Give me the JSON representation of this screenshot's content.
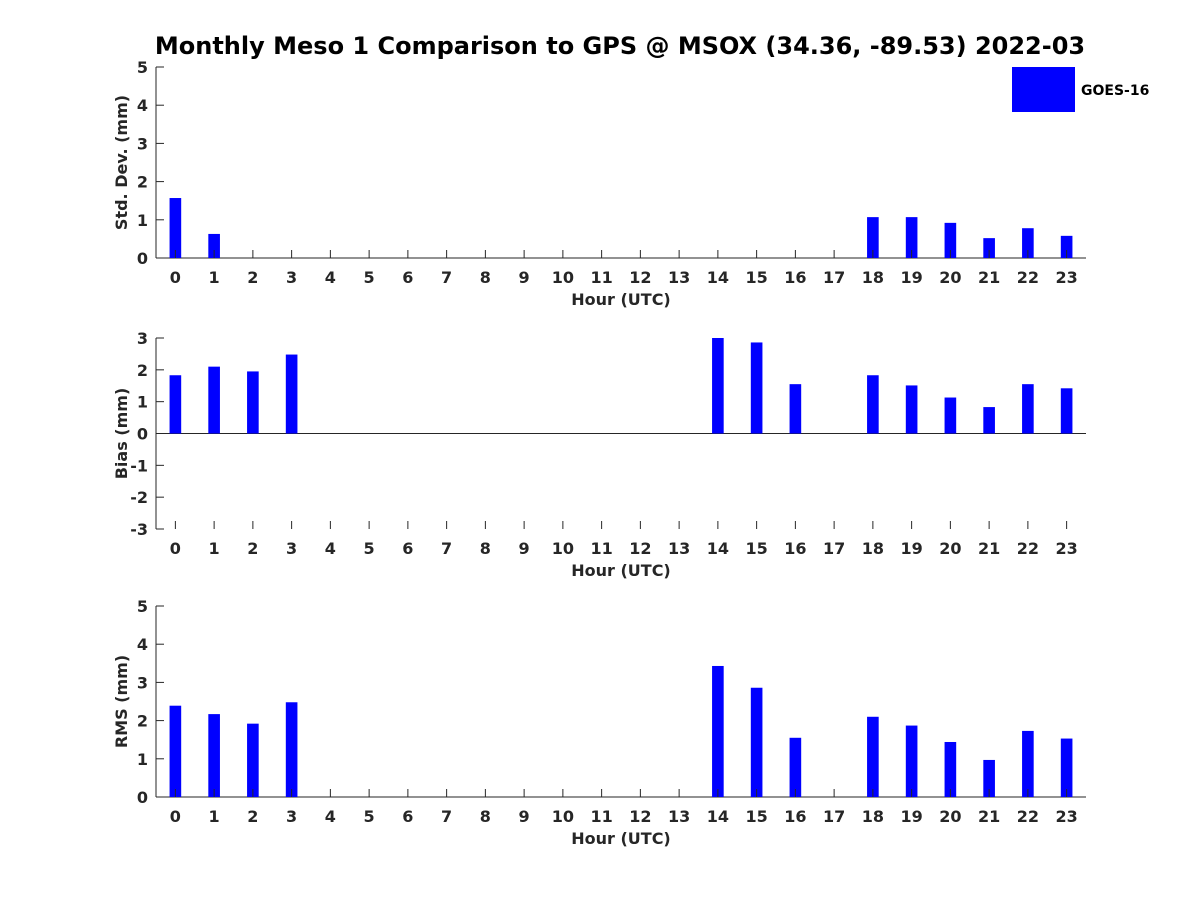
{
  "title": "Monthly Meso 1 Comparison to GPS @ MSOX (34.36, -89.53) 2022-03",
  "legend": {
    "label": "GOES-16",
    "color": "#0000ff",
    "placement": "top-right"
  },
  "chart_data": [
    {
      "type": "bar",
      "xlabel": "Hour (UTC)",
      "ylabel": "Std. Dev. (mm)",
      "ylim": [
        0,
        5
      ],
      "yticks": [
        0,
        1,
        2,
        3,
        4,
        5
      ],
      "categories": [
        "0",
        "1",
        "2",
        "3",
        "4",
        "5",
        "6",
        "7",
        "8",
        "9",
        "10",
        "11",
        "12",
        "13",
        "14",
        "15",
        "16",
        "17",
        "18",
        "19",
        "20",
        "21",
        "22",
        "23"
      ],
      "series": [
        {
          "name": "GOES-16",
          "color": "#0000ff",
          "values": [
            1.57,
            0.63,
            null,
            null,
            null,
            null,
            null,
            null,
            null,
            null,
            null,
            null,
            null,
            null,
            null,
            null,
            null,
            null,
            1.07,
            1.07,
            0.92,
            0.52,
            0.78,
            0.58
          ]
        }
      ]
    },
    {
      "type": "bar",
      "xlabel": "Hour (UTC)",
      "ylabel": "Bias (mm)",
      "ylim": [
        -3,
        3
      ],
      "yticks": [
        -3,
        -2,
        -1,
        0,
        1,
        2,
        3
      ],
      "categories": [
        "0",
        "1",
        "2",
        "3",
        "4",
        "5",
        "6",
        "7",
        "8",
        "9",
        "10",
        "11",
        "12",
        "13",
        "14",
        "15",
        "16",
        "17",
        "18",
        "19",
        "20",
        "21",
        "22",
        "23"
      ],
      "series": [
        {
          "name": "GOES-16",
          "color": "#0000ff",
          "values": [
            1.83,
            2.1,
            1.95,
            2.48,
            null,
            null,
            null,
            null,
            null,
            null,
            null,
            null,
            null,
            null,
            3.0,
            2.86,
            1.55,
            null,
            1.83,
            1.51,
            1.13,
            0.83,
            1.55,
            1.42
          ]
        }
      ]
    },
    {
      "type": "bar",
      "xlabel": "Hour (UTC)",
      "ylabel": "RMS (mm)",
      "ylim": [
        0,
        5
      ],
      "yticks": [
        0,
        1,
        2,
        3,
        4,
        5
      ],
      "categories": [
        "0",
        "1",
        "2",
        "3",
        "4",
        "5",
        "6",
        "7",
        "8",
        "9",
        "10",
        "11",
        "12",
        "13",
        "14",
        "15",
        "16",
        "17",
        "18",
        "19",
        "20",
        "21",
        "22",
        "23"
      ],
      "series": [
        {
          "name": "GOES-16",
          "color": "#0000ff",
          "values": [
            2.39,
            2.17,
            1.92,
            2.48,
            null,
            null,
            null,
            null,
            null,
            null,
            null,
            null,
            null,
            null,
            3.43,
            2.86,
            1.55,
            null,
            2.1,
            1.87,
            1.44,
            0.97,
            1.73,
            1.53
          ]
        }
      ]
    }
  ]
}
